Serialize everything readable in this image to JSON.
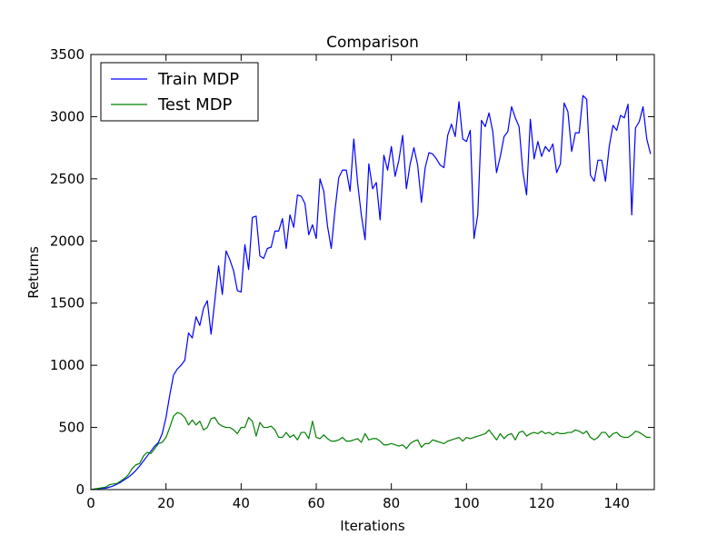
{
  "chart_data": {
    "type": "line",
    "title": "Comparison",
    "xlabel": "Iterations",
    "ylabel": "Returns",
    "xlim": [
      0,
      150
    ],
    "ylim": [
      0,
      3500
    ],
    "x_ticks": [
      0,
      20,
      40,
      60,
      80,
      100,
      120,
      140
    ],
    "y_ticks": [
      0,
      500,
      1000,
      1500,
      2000,
      2500,
      3000,
      3500
    ],
    "grid": false,
    "legend_position": "top-left",
    "series": [
      {
        "name": "Train MDP",
        "color": "#0000ff",
        "values": [
          0,
          5,
          8,
          10,
          12,
          20,
          30,
          45,
          60,
          80,
          100,
          125,
          155,
          190,
          230,
          270,
          310,
          350,
          380,
          450,
          580,
          760,
          920,
          970,
          1000,
          1040,
          1260,
          1220,
          1390,
          1320,
          1460,
          1520,
          1250,
          1520,
          1800,
          1570,
          1920,
          1850,
          1760,
          1600,
          1590,
          1970,
          1770,
          2190,
          2200,
          1880,
          1860,
          1940,
          1950,
          2080,
          2080,
          2180,
          1940,
          2210,
          2110,
          2370,
          2360,
          2300,
          2050,
          2130,
          2020,
          2500,
          2400,
          2120,
          1940,
          2250,
          2510,
          2570,
          2570,
          2400,
          2820,
          2470,
          2210,
          2010,
          2620,
          2420,
          2470,
          2170,
          2690,
          2570,
          2760,
          2520,
          2650,
          2850,
          2420,
          2620,
          2750,
          2610,
          2310,
          2590,
          2710,
          2700,
          2660,
          2610,
          2590,
          2850,
          2940,
          2840,
          3120,
          2820,
          2800,
          2890,
          2020,
          2210,
          2970,
          2920,
          3030,
          2880,
          2550,
          2680,
          2840,
          2880,
          3080,
          2990,
          2920,
          2560,
          2370,
          2980,
          2660,
          2800,
          2680,
          2760,
          2720,
          2780,
          2550,
          2620,
          3110,
          3040,
          2720,
          2870,
          2870,
          3170,
          3140,
          2530,
          2480,
          2650,
          2650,
          2480,
          2760,
          2930,
          2890,
          3010,
          2990,
          3100,
          2210,
          2910,
          2960,
          3080,
          2820,
          2700
        ]
      },
      {
        "name": "Test MDP",
        "color": "#008000",
        "values": [
          0,
          5,
          10,
          15,
          20,
          40,
          45,
          50,
          70,
          90,
          120,
          170,
          200,
          210,
          270,
          300,
          290,
          330,
          370,
          380,
          420,
          500,
          590,
          620,
          610,
          580,
          520,
          560,
          520,
          550,
          480,
          500,
          570,
          580,
          530,
          510,
          500,
          500,
          480,
          450,
          500,
          500,
          580,
          550,
          430,
          540,
          500,
          500,
          510,
          480,
          420,
          420,
          460,
          420,
          440,
          400,
          460,
          460,
          410,
          550,
          420,
          410,
          440,
          410,
          390,
          390,
          400,
          420,
          390,
          390,
          400,
          410,
          380,
          450,
          400,
          410,
          410,
          390,
          360,
          360,
          370,
          360,
          350,
          360,
          330,
          370,
          390,
          400,
          340,
          370,
          370,
          400,
          390,
          380,
          370,
          390,
          400,
          410,
          420,
          390,
          420,
          410,
          420,
          430,
          440,
          450,
          480,
          440,
          400,
          450,
          410,
          440,
          450,
          400,
          460,
          470,
          430,
          450,
          460,
          450,
          470,
          450,
          460,
          440,
          460,
          450,
          450,
          460,
          460,
          480,
          470,
          450,
          470,
          420,
          400,
          420,
          460,
          460,
          420,
          450,
          460,
          430,
          420,
          420,
          440,
          470,
          460,
          440,
          420,
          420
        ]
      }
    ]
  }
}
